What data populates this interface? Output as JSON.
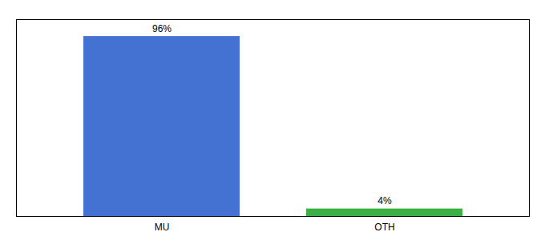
{
  "chart_data": {
    "type": "bar",
    "categories": [
      "MU",
      "OTH"
    ],
    "values": [
      96,
      4
    ],
    "value_labels": [
      "96%",
      "4%"
    ],
    "colors": [
      "#4472d3",
      "#3cb043"
    ],
    "ylim": [
      0,
      105
    ],
    "data_labels": true,
    "tick_labels": "x"
  }
}
